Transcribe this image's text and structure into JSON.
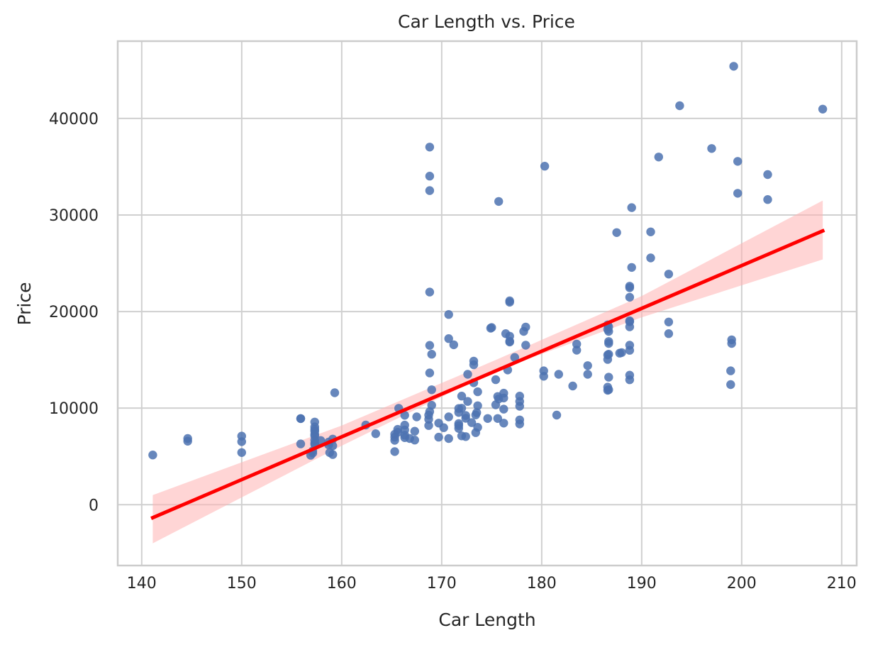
{
  "chart_data": {
    "type": "scatter",
    "title": "Car Length vs. Price",
    "xlabel": "Car Length",
    "ylabel": "Price",
    "xlim": [
      137.6,
      211.5
    ],
    "ylim": [
      -6300,
      48000
    ],
    "xticks": [
      140,
      150,
      160,
      170,
      180,
      190,
      200,
      210
    ],
    "yticks": [
      0,
      10000,
      20000,
      30000,
      40000
    ],
    "xtick_labels": [
      "140",
      "150",
      "160",
      "170",
      "180",
      "190",
      "200",
      "210"
    ],
    "ytick_labels": [
      "0",
      "10000",
      "20000",
      "30000",
      "40000"
    ],
    "grid": true,
    "colors": {
      "points": "#4c72b0",
      "regression_line": "#ff0000",
      "confidence_band": "#ffb3b3"
    },
    "series": [
      {
        "kind": "points",
        "points": [
          [
            141.1,
            5151
          ],
          [
            144.6,
            6575
          ],
          [
            144.6,
            6855
          ],
          [
            150.0,
            5399
          ],
          [
            150.0,
            6529
          ],
          [
            150.0,
            7099
          ],
          [
            155.9,
            6295
          ],
          [
            155.9,
            8916
          ],
          [
            155.9,
            8916
          ],
          [
            156.9,
            5118
          ],
          [
            157.1,
            5348
          ],
          [
            157.1,
            5572
          ],
          [
            157.3,
            6229
          ],
          [
            157.3,
            6377
          ],
          [
            157.3,
            6692
          ],
          [
            157.3,
            7129
          ],
          [
            157.3,
            7295
          ],
          [
            157.3,
            7609
          ],
          [
            157.3,
            7799
          ],
          [
            157.3,
            8058
          ],
          [
            157.3,
            8558
          ],
          [
            157.9,
            6649
          ],
          [
            158.7,
            6488
          ],
          [
            158.8,
            5389
          ],
          [
            158.7,
            6189
          ],
          [
            159.1,
            5195
          ],
          [
            159.1,
            6095
          ],
          [
            159.1,
            6795
          ],
          [
            159.3,
            11595
          ],
          [
            162.4,
            8249
          ],
          [
            163.4,
            7349
          ],
          [
            165.3,
            5499
          ],
          [
            165.3,
            6669
          ],
          [
            165.3,
            6989
          ],
          [
            165.3,
            7299
          ],
          [
            165.6,
            7499
          ],
          [
            165.6,
            7799
          ],
          [
            165.7,
            9980
          ],
          [
            166.3,
            6938
          ],
          [
            166.3,
            7198
          ],
          [
            166.3,
            7738
          ],
          [
            166.3,
            8238
          ],
          [
            166.3,
            9258
          ],
          [
            166.8,
            6849
          ],
          [
            167.3,
            6692
          ],
          [
            167.3,
            7609
          ],
          [
            167.5,
            9095
          ],
          [
            168.7,
            8195
          ],
          [
            168.7,
            8845
          ],
          [
            168.7,
            9279
          ],
          [
            168.8,
            9639
          ],
          [
            168.8,
            13645
          ],
          [
            168.8,
            16500
          ],
          [
            168.8,
            22018
          ],
          [
            168.8,
            32528
          ],
          [
            168.8,
            34028
          ],
          [
            168.8,
            37028
          ],
          [
            169.0,
            10295
          ],
          [
            169.0,
            11900
          ],
          [
            169.0,
            15580
          ],
          [
            169.7,
            6989
          ],
          [
            169.7,
            8449
          ],
          [
            170.2,
            7975
          ],
          [
            170.7,
            6855
          ],
          [
            170.7,
            9095
          ],
          [
            170.7,
            17199
          ],
          [
            170.7,
            19699
          ],
          [
            171.2,
            16558
          ],
          [
            171.7,
            7898
          ],
          [
            171.7,
            8189
          ],
          [
            171.7,
            8399
          ],
          [
            171.7,
            9549
          ],
          [
            171.7,
            9960
          ],
          [
            172.0,
            7126
          ],
          [
            172.0,
            11245
          ],
          [
            172.0,
            9989
          ],
          [
            172.4,
            7053
          ],
          [
            172.4,
            8948
          ],
          [
            172.4,
            9233
          ],
          [
            172.6,
            10698
          ],
          [
            172.6,
            13499
          ],
          [
            173.0,
            8495
          ],
          [
            173.2,
            12629
          ],
          [
            173.2,
            14869
          ],
          [
            173.2,
            14489
          ],
          [
            173.4,
            7463
          ],
          [
            173.4,
            9298
          ],
          [
            173.5,
            9538
          ],
          [
            173.6,
            8013
          ],
          [
            173.6,
            11694
          ],
          [
            173.6,
            10245
          ],
          [
            174.6,
            8921
          ],
          [
            174.9,
            18280
          ],
          [
            175.0,
            18344
          ],
          [
            175.4,
            12945
          ],
          [
            175.4,
            10345
          ],
          [
            175.6,
            8921
          ],
          [
            175.6,
            11199
          ],
          [
            175.7,
            31400
          ],
          [
            175.7,
            10945
          ],
          [
            176.2,
            11549
          ],
          [
            176.2,
            8449
          ],
          [
            176.2,
            9895
          ],
          [
            176.2,
            11048
          ],
          [
            176.4,
            17710
          ],
          [
            176.6,
            13950
          ],
          [
            176.8,
            17450
          ],
          [
            176.8,
            16845
          ],
          [
            176.8,
            21105
          ],
          [
            176.8,
            20970
          ],
          [
            176.8,
            16925
          ],
          [
            177.3,
            15250
          ],
          [
            177.8,
            8778
          ],
          [
            177.8,
            8358
          ],
          [
            177.8,
            10198
          ],
          [
            177.8,
            10698
          ],
          [
            177.8,
            11248
          ],
          [
            178.2,
            17950
          ],
          [
            178.4,
            16515
          ],
          [
            178.4,
            18399
          ],
          [
            180.2,
            13860
          ],
          [
            180.2,
            13295
          ],
          [
            180.3,
            35056
          ],
          [
            181.5,
            9279
          ],
          [
            181.7,
            13499
          ],
          [
            183.1,
            12290
          ],
          [
            183.5,
            16630
          ],
          [
            183.5,
            15998
          ],
          [
            184.6,
            14399
          ],
          [
            184.6,
            13499
          ],
          [
            186.6,
            11850
          ],
          [
            186.6,
            12170
          ],
          [
            186.6,
            15040
          ],
          [
            186.6,
            15510
          ],
          [
            186.6,
            18150
          ],
          [
            186.6,
            18620
          ],
          [
            186.7,
            11900
          ],
          [
            186.7,
            13200
          ],
          [
            186.7,
            15580
          ],
          [
            186.7,
            16900
          ],
          [
            186.7,
            16695
          ],
          [
            186.7,
            17950
          ],
          [
            186.7,
            18420
          ],
          [
            187.5,
            28176
          ],
          [
            187.8,
            15690
          ],
          [
            188.0,
            15750
          ],
          [
            188.8,
            12940
          ],
          [
            188.8,
            13415
          ],
          [
            188.8,
            15985
          ],
          [
            188.8,
            16515
          ],
          [
            188.8,
            18420
          ],
          [
            188.8,
            18950
          ],
          [
            188.8,
            19045
          ],
          [
            188.8,
            21485
          ],
          [
            188.8,
            22470
          ],
          [
            188.8,
            22625
          ],
          [
            189.0,
            30760
          ],
          [
            189.0,
            24565
          ],
          [
            190.9,
            25552
          ],
          [
            190.9,
            28248
          ],
          [
            191.7,
            36000
          ],
          [
            192.7,
            17710
          ],
          [
            192.7,
            18920
          ],
          [
            192.7,
            23875
          ],
          [
            193.8,
            41315
          ],
          [
            197.0,
            36880
          ],
          [
            198.9,
            12440
          ],
          [
            198.9,
            13860
          ],
          [
            199.0,
            16695
          ],
          [
            199.0,
            17075
          ],
          [
            199.2,
            45400
          ],
          [
            199.6,
            32250
          ],
          [
            199.6,
            35550
          ],
          [
            202.6,
            31600
          ],
          [
            202.6,
            34184
          ],
          [
            208.1,
            40960
          ]
        ]
      },
      {
        "kind": "regression",
        "line": [
          [
            141.1,
            -1350
          ],
          [
            208.1,
            28350
          ]
        ],
        "band": [
          [
            141.1,
            -4000,
            1000
          ],
          [
            160.0,
            6100,
            8200
          ],
          [
            175.0,
            13700,
            14800
          ],
          [
            190.0,
            19400,
            21600
          ],
          [
            208.1,
            25400,
            31500
          ]
        ]
      }
    ]
  }
}
